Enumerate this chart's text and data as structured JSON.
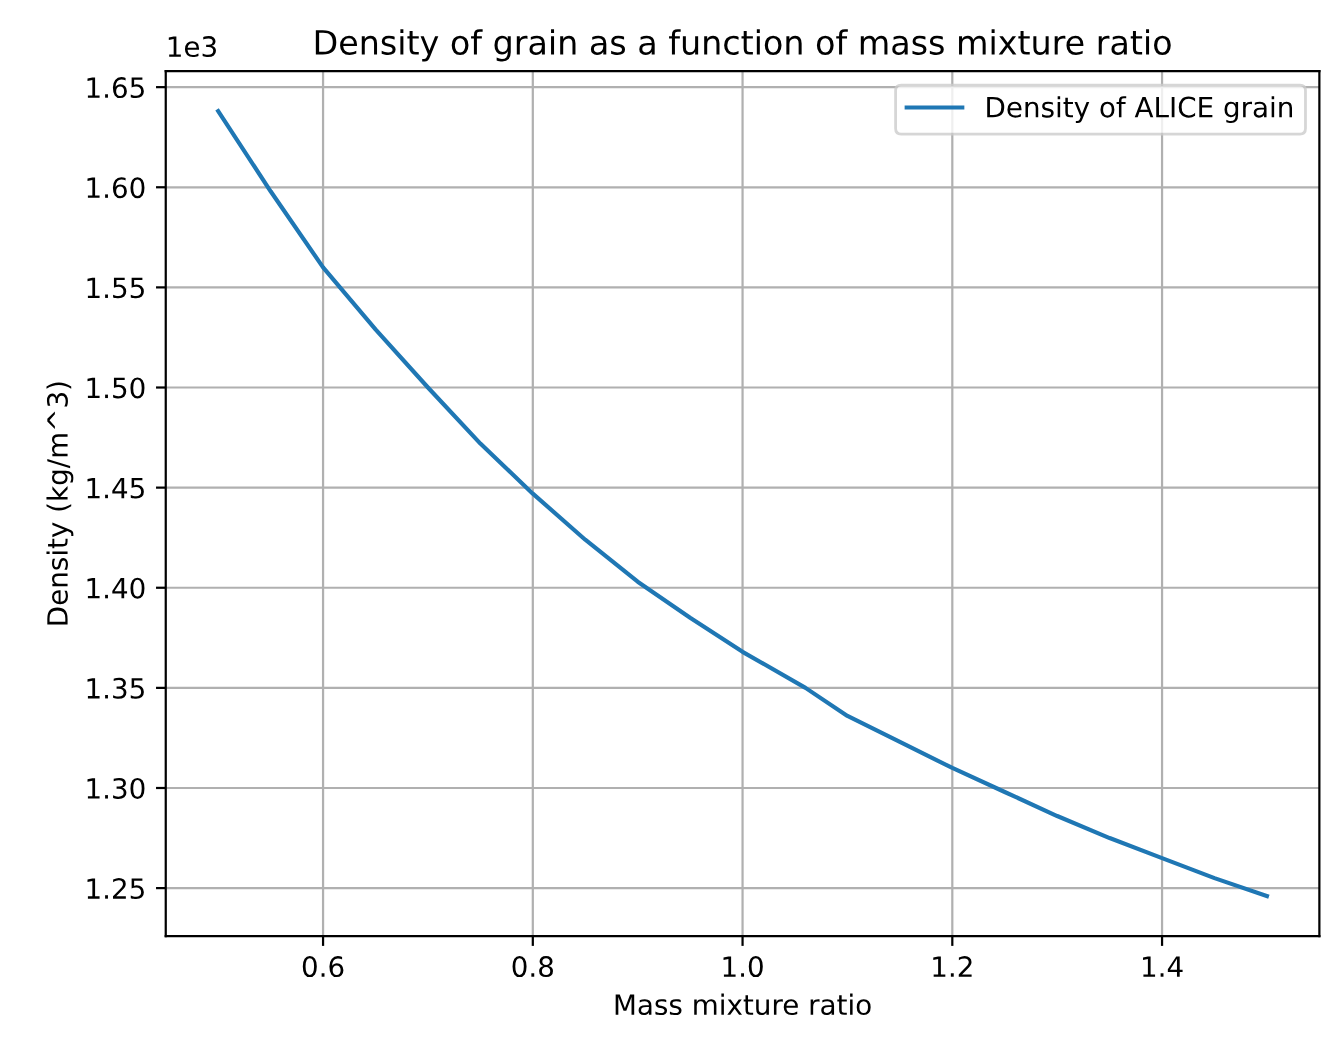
{
  "chart_data": {
    "type": "line",
    "title": "Density of grain as a function of mass mixture ratio",
    "xlabel": "Mass mixture ratio",
    "ylabel": "Density (kg/m^3)",
    "x": [
      0.5,
      0.55,
      0.6,
      0.65,
      0.7,
      0.75,
      0.8,
      0.85,
      0.9,
      0.95,
      1.0,
      1.06,
      1.1,
      1.15,
      1.2,
      1.25,
      1.3,
      1.35,
      1.4,
      1.45,
      1.5
    ],
    "series": [
      {
        "name": "Density of ALICE grain",
        "color": "#1f77b4",
        "values": [
          1.638,
          1.598,
          1.56,
          1.529,
          1.5,
          1.472,
          1.447,
          1.424,
          1.403,
          1.385,
          1.368,
          1.35,
          1.336,
          1.323,
          1.31,
          1.298,
          1.286,
          1.275,
          1.265,
          1.255,
          1.246
        ]
      }
    ],
    "xlim": [
      0.45,
      1.55
    ],
    "xticks": [
      0.6,
      0.8,
      {
        "value": 1.0,
        "label": "1.0"
      },
      1.2,
      1.4
    ],
    "ylim": [
      1.226,
      1.658
    ],
    "yticks": [
      1.25,
      {
        "value": 1.3,
        "label": "1.30"
      },
      1.35,
      {
        "value": 1.4,
        "label": "1.40"
      },
      1.45,
      {
        "value": 1.5,
        "label": "1.50"
      },
      1.55,
      {
        "value": 1.6,
        "label": "1.60"
      },
      1.65
    ],
    "annotations": [
      "1e3"
    ],
    "grid": true,
    "legend": "top right",
    "marker": "none",
    "line_style": "solid"
  }
}
